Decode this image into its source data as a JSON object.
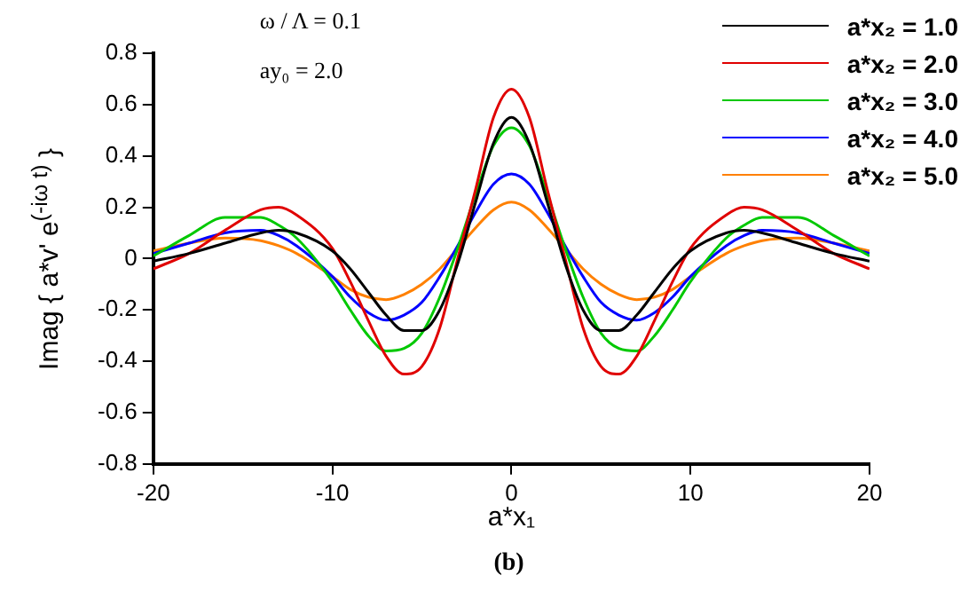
{
  "chart_data": {
    "type": "line",
    "xlabel": "a*x₁",
    "ylabel": "Imag { a*v' e$^{(-iω t)}$ }",
    "annotations": [
      "ω / Λ = 0.1",
      "ay₀ = 2.0",
      "(b)"
    ],
    "x": [
      -20,
      -18,
      -16,
      -14,
      -13,
      -12,
      -10,
      -9,
      -8,
      -7,
      -6,
      -5,
      -4,
      -3,
      -2,
      -1,
      0,
      1,
      2,
      3,
      4,
      5,
      6,
      7,
      8,
      9,
      10,
      12,
      13,
      14,
      16,
      18,
      20
    ],
    "xlim": [
      -20,
      20
    ],
    "xticks": [
      -20,
      -10,
      0,
      10,
      20
    ],
    "ylim": [
      -0.8,
      0.8
    ],
    "yticks": [
      -0.8,
      -0.6,
      -0.4,
      -0.2,
      0,
      0.2,
      0.4,
      0.6,
      0.8
    ],
    "grid": false,
    "legend": "top right",
    "marker": "none",
    "line_style": "solid",
    "series": [
      {
        "name": "a*x₂ = 1.0",
        "color": "#000000",
        "values": [
          -0.01,
          0.02,
          0.06,
          0.1,
          0.11,
          0.1,
          0.03,
          -0.04,
          -0.13,
          -0.22,
          -0.28,
          -0.28,
          -0.2,
          -0.02,
          0.22,
          0.45,
          0.55,
          0.45,
          0.22,
          -0.02,
          -0.2,
          -0.28,
          -0.28,
          -0.22,
          -0.13,
          -0.04,
          0.03,
          0.1,
          0.11,
          0.1,
          0.06,
          0.02,
          -0.01
        ]
      },
      {
        "name": "a*x₂ = 2.0",
        "color": "#e00000",
        "values": [
          -0.04,
          0.02,
          0.11,
          0.19,
          0.2,
          0.17,
          0.04,
          -0.09,
          -0.24,
          -0.38,
          -0.45,
          -0.42,
          -0.27,
          0.0,
          0.27,
          0.55,
          0.66,
          0.55,
          0.27,
          0.0,
          -0.27,
          -0.42,
          -0.45,
          -0.38,
          -0.24,
          -0.09,
          0.04,
          0.17,
          0.2,
          0.19,
          0.11,
          0.02,
          -0.04
        ]
      },
      {
        "name": "a*x₂ = 3.0",
        "color": "#00c800",
        "values": [
          0.01,
          0.09,
          0.16,
          0.16,
          0.13,
          0.08,
          -0.09,
          -0.2,
          -0.3,
          -0.36,
          -0.35,
          -0.29,
          -0.15,
          0.04,
          0.25,
          0.44,
          0.51,
          0.44,
          0.25,
          0.04,
          -0.15,
          -0.29,
          -0.35,
          -0.36,
          -0.3,
          -0.2,
          -0.09,
          0.08,
          0.13,
          0.16,
          0.16,
          0.09,
          0.01
        ]
      },
      {
        "name": "a*x₂ = 4.0",
        "color": "#0000ff",
        "values": [
          0.02,
          0.06,
          0.1,
          0.11,
          0.09,
          0.05,
          -0.07,
          -0.15,
          -0.21,
          -0.24,
          -0.22,
          -0.17,
          -0.07,
          0.05,
          0.18,
          0.29,
          0.33,
          0.29,
          0.18,
          0.05,
          -0.07,
          -0.17,
          -0.22,
          -0.24,
          -0.21,
          -0.15,
          -0.07,
          0.05,
          0.09,
          0.11,
          0.1,
          0.06,
          0.02
        ]
      },
      {
        "name": "a*x₂ = 5.0",
        "color": "#ff8000",
        "values": [
          0.03,
          0.06,
          0.08,
          0.07,
          0.05,
          0.02,
          -0.07,
          -0.12,
          -0.15,
          -0.16,
          -0.14,
          -0.1,
          -0.04,
          0.04,
          0.12,
          0.19,
          0.22,
          0.19,
          0.12,
          0.04,
          -0.04,
          -0.1,
          -0.14,
          -0.16,
          -0.15,
          -0.12,
          -0.07,
          0.02,
          0.05,
          0.07,
          0.08,
          0.06,
          0.03
        ]
      }
    ]
  }
}
